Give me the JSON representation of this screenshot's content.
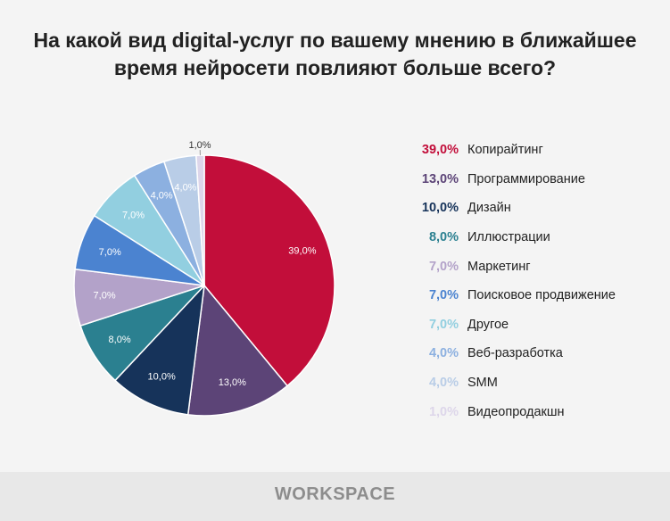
{
  "title_lines": [
    "На какой вид digital-услуг по вашему мнению в ближайшее",
    "время нейросети повлияют больше всего?"
  ],
  "chart_data": {
    "type": "pie",
    "title": "На какой вид digital-услуг по вашему мнению в ближайшее время нейросети повлияют больше всего?",
    "start": "top",
    "direction": "clockwise",
    "legend_position": "right",
    "slices": [
      {
        "label": "Копирайтинг",
        "value": 39.0,
        "display": "39,0%",
        "color": "#c20e3a"
      },
      {
        "label": "Программирование",
        "value": 13.0,
        "display": "13,0%",
        "color": "#5c4477"
      },
      {
        "label": "Дизайн",
        "value": 10.0,
        "display": "10,0%",
        "color": "#16335a"
      },
      {
        "label": "Иллюстрации",
        "value": 8.0,
        "display": "8,0%",
        "color": "#2b8090"
      },
      {
        "label": "Маркетинг",
        "value": 7.0,
        "display": "7,0%",
        "color": "#b3a2c9"
      },
      {
        "label": "Поисковое продвижение",
        "value": 7.0,
        "display": "7,0%",
        "color": "#4b83d0"
      },
      {
        "label": "Другое",
        "value": 7.0,
        "display": "7,0%",
        "color": "#92cfe0"
      },
      {
        "label": "Веб-разработка",
        "value": 4.0,
        "display": "4,0%",
        "color": "#8cb0e0"
      },
      {
        "label": "SMM",
        "value": 4.0,
        "display": "4,0%",
        "color": "#b9cde7"
      },
      {
        "label": "Видеопродакшн",
        "value": 1.0,
        "display": "1,0%",
        "color": "#ddd6ea"
      }
    ]
  },
  "footer": {
    "logo": "WORKSPACE"
  }
}
